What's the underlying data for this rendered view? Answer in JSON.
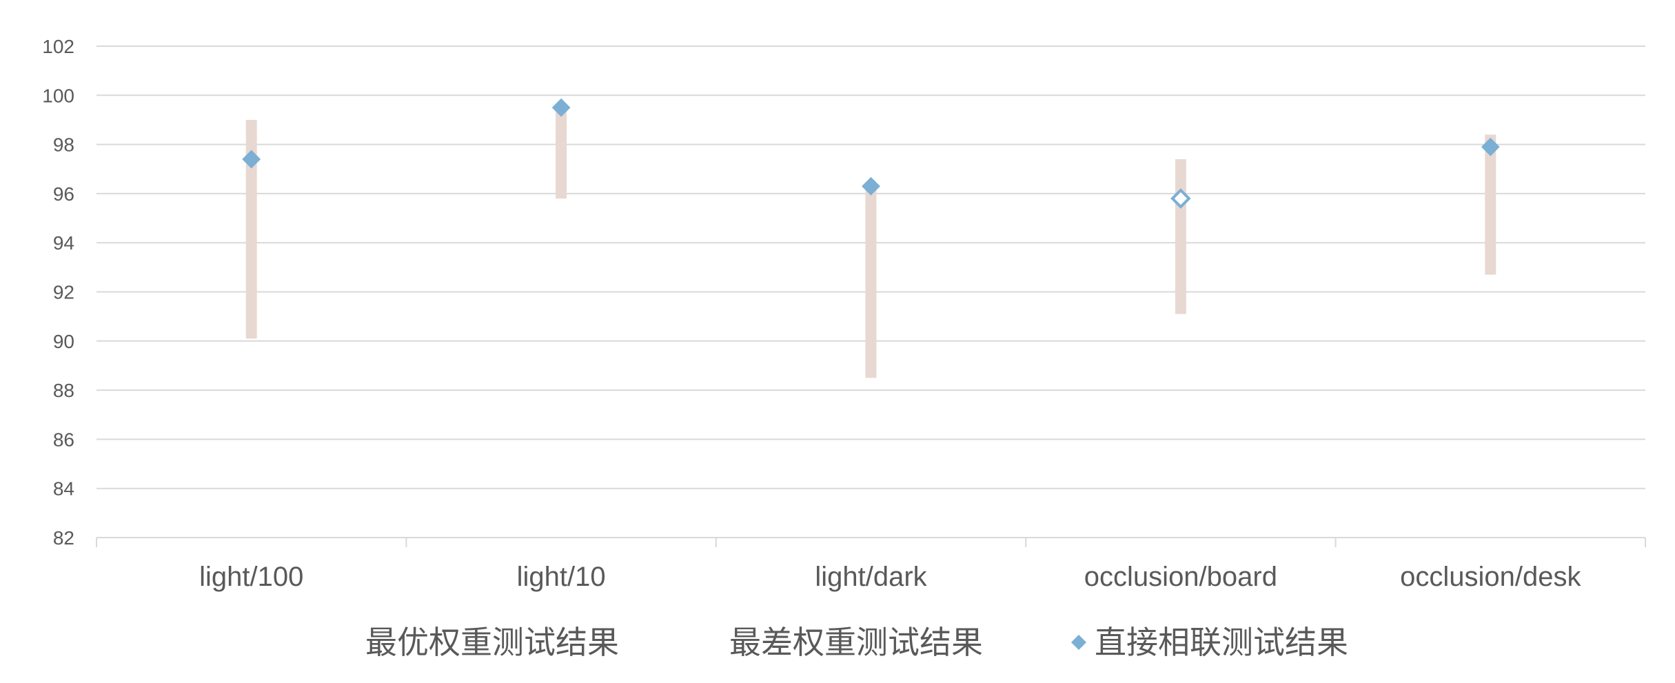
{
  "chart_data": {
    "type": "scatter",
    "categories": [
      "light/100",
      "light/10",
      "light/dark",
      "occlusion/board",
      "occlusion/desk"
    ],
    "ylim": [
      82,
      102
    ],
    "yticks": [
      82,
      84,
      86,
      88,
      90,
      92,
      94,
      96,
      98,
      100,
      102
    ],
    "grid": true,
    "legend_position": "bottom",
    "series": [
      {
        "name": "最优权重测试结果",
        "values": [
          99.0,
          99.6,
          96.3,
          97.4,
          98.4
        ]
      },
      {
        "name": "最差权重测试结果",
        "values": [
          90.1,
          95.8,
          88.5,
          91.1,
          92.7
        ]
      },
      {
        "name": "直接相联测试结果",
        "values": [
          97.4,
          99.5,
          96.3,
          95.8,
          97.9
        ]
      }
    ],
    "colors": {
      "range_bar": "#e8d8d2",
      "marker": "#7bafd4",
      "grid": "#d9d9d9",
      "text": "#595959"
    }
  }
}
